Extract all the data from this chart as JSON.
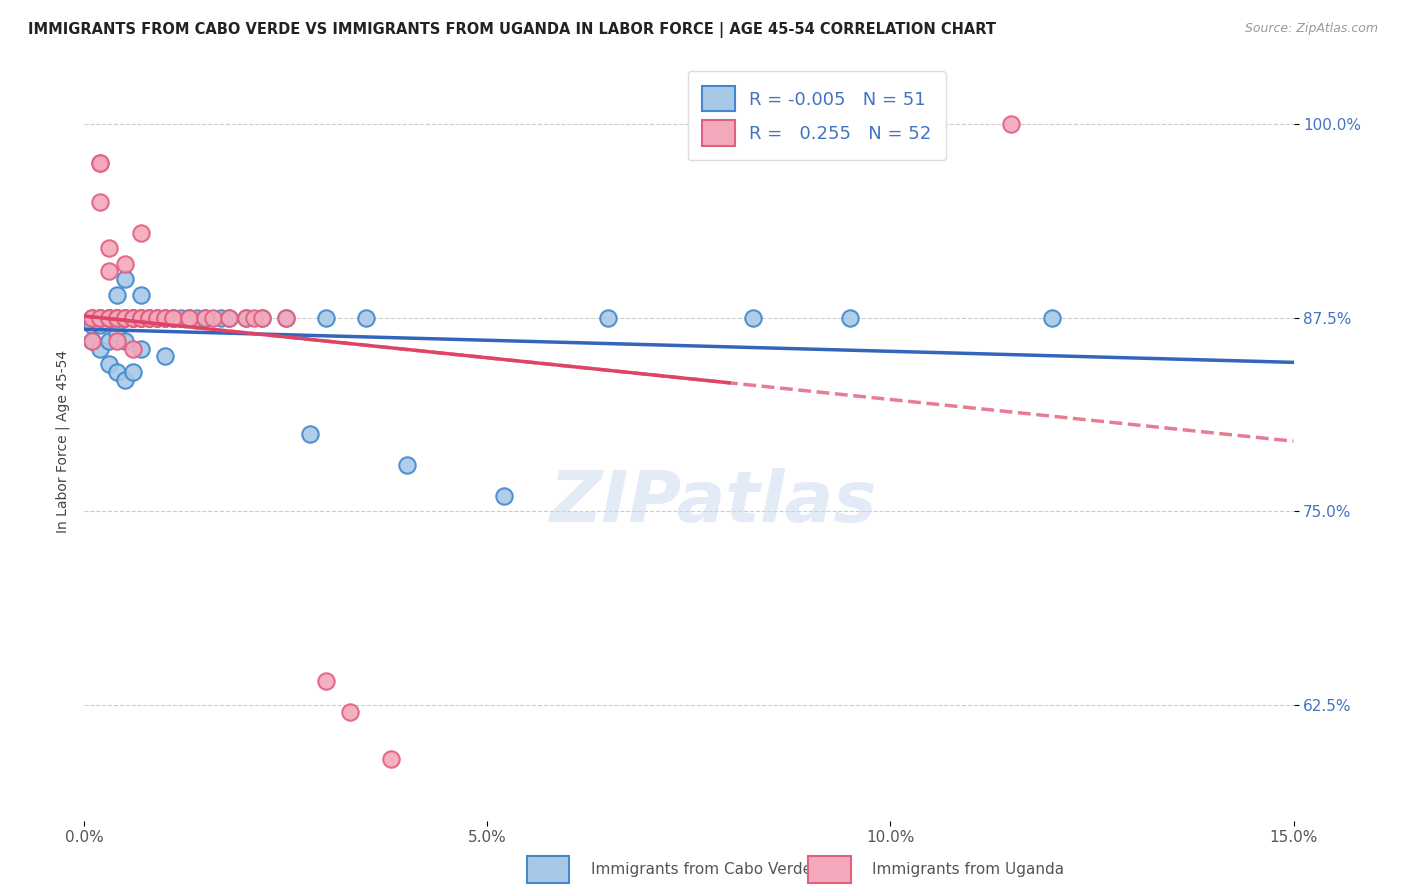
{
  "title": "IMMIGRANTS FROM CABO VERDE VS IMMIGRANTS FROM UGANDA IN LABOR FORCE | AGE 45-54 CORRELATION CHART",
  "source": "Source: ZipAtlas.com",
  "ylabel": "In Labor Force | Age 45-54",
  "xlim": [
    0.0,
    0.15
  ],
  "ylim": [
    0.55,
    1.04
  ],
  "xticks": [
    0.0,
    0.05,
    0.1,
    0.15
  ],
  "xticklabels": [
    "0.0%",
    "5.0%",
    "10.0%",
    "15.0%"
  ],
  "yticks": [
    0.625,
    0.75,
    0.875,
    1.0
  ],
  "yticklabels": [
    "62.5%",
    "75.0%",
    "87.5%",
    "100.0%"
  ],
  "legend_labels": [
    "Immigrants from Cabo Verde",
    "Immigrants from Uganda"
  ],
  "R_cabo": -0.005,
  "N_cabo": 51,
  "R_uganda": 0.255,
  "N_uganda": 52,
  "color_cabo": "#a8c8e8",
  "color_uganda": "#f4a8bc",
  "color_cabo_edge": "#4488cc",
  "color_uganda_edge": "#e06080",
  "color_cabo_line": "#3366bb",
  "color_uganda_line": "#dd4466",
  "cabo_x": [
    0.001,
    0.001,
    0.001,
    0.002,
    0.002,
    0.002,
    0.002,
    0.003,
    0.003,
    0.003,
    0.003,
    0.003,
    0.003,
    0.004,
    0.004,
    0.004,
    0.004,
    0.004,
    0.004,
    0.005,
    0.005,
    0.005,
    0.005,
    0.006,
    0.006,
    0.006,
    0.007,
    0.007,
    0.008,
    0.009,
    0.01,
    0.01,
    0.011,
    0.012,
    0.013,
    0.014,
    0.015,
    0.017,
    0.018,
    0.02,
    0.022,
    0.025,
    0.028,
    0.03,
    0.035,
    0.04,
    0.052,
    0.065,
    0.083,
    0.095,
    0.12
  ],
  "cabo_y": [
    0.875,
    0.87,
    0.86,
    0.875,
    0.875,
    0.87,
    0.855,
    0.875,
    0.875,
    0.875,
    0.875,
    0.86,
    0.845,
    0.89,
    0.875,
    0.875,
    0.875,
    0.865,
    0.84,
    0.9,
    0.875,
    0.86,
    0.835,
    0.875,
    0.875,
    0.84,
    0.89,
    0.855,
    0.875,
    0.875,
    0.875,
    0.85,
    0.875,
    0.875,
    0.875,
    0.875,
    0.875,
    0.875,
    0.875,
    0.875,
    0.875,
    0.875,
    0.8,
    0.875,
    0.875,
    0.78,
    0.76,
    0.875,
    0.875,
    0.875,
    0.875
  ],
  "uganda_x": [
    0.001,
    0.001,
    0.001,
    0.002,
    0.002,
    0.002,
    0.002,
    0.002,
    0.003,
    0.003,
    0.003,
    0.003,
    0.003,
    0.004,
    0.004,
    0.004,
    0.004,
    0.005,
    0.005,
    0.005,
    0.005,
    0.006,
    0.006,
    0.006,
    0.006,
    0.007,
    0.007,
    0.007,
    0.007,
    0.007,
    0.008,
    0.008,
    0.008,
    0.009,
    0.009,
    0.01,
    0.01,
    0.011,
    0.011,
    0.013,
    0.013,
    0.015,
    0.016,
    0.018,
    0.02,
    0.021,
    0.022,
    0.025,
    0.03,
    0.033,
    0.038,
    0.115
  ],
  "uganda_y": [
    0.875,
    0.875,
    0.86,
    0.975,
    0.975,
    0.95,
    0.875,
    0.875,
    0.92,
    0.905,
    0.875,
    0.875,
    0.875,
    0.875,
    0.875,
    0.875,
    0.86,
    0.91,
    0.875,
    0.875,
    0.875,
    0.875,
    0.875,
    0.875,
    0.855,
    0.93,
    0.875,
    0.875,
    0.875,
    0.875,
    0.875,
    0.875,
    0.875,
    0.875,
    0.875,
    0.875,
    0.875,
    0.875,
    0.875,
    0.875,
    0.875,
    0.875,
    0.875,
    0.875,
    0.875,
    0.875,
    0.875,
    0.875,
    0.64,
    0.62,
    0.59,
    1.0
  ],
  "background_color": "#ffffff",
  "grid_color": "#cccccc"
}
